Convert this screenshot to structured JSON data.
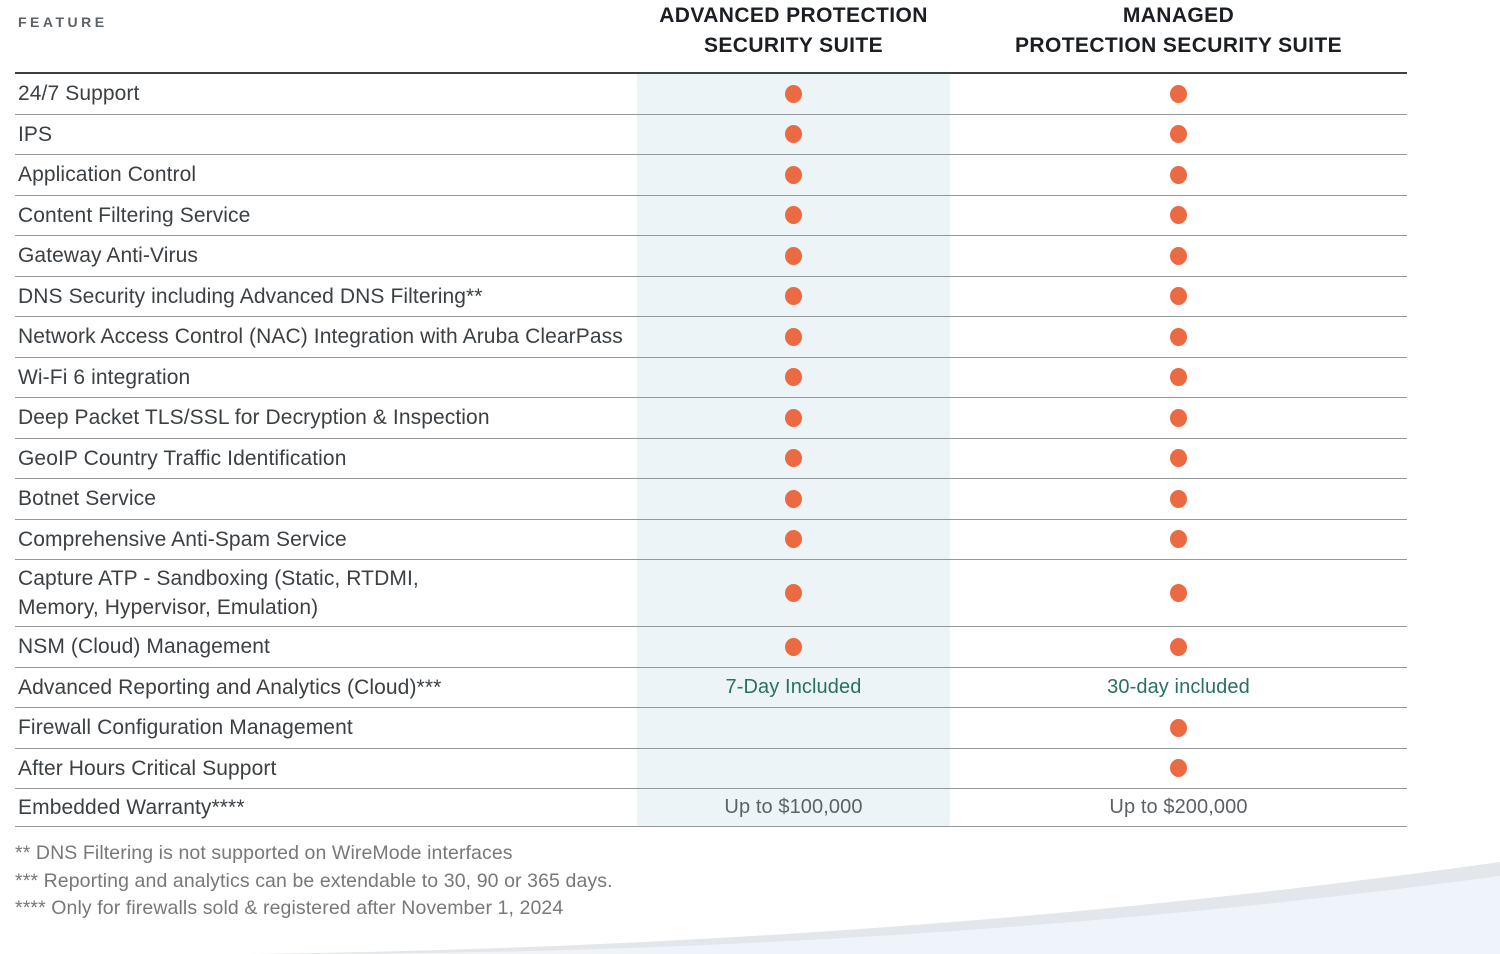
{
  "header": {
    "feature_label": "FEATURE",
    "advanced_label": "ADVANCED PROTECTION\nSECURITY SUITE",
    "managed_label": "MANAGED\nPROTECTION SECURITY SUITE"
  },
  "colors": {
    "dot": "#ec6a41",
    "highlight_bg": "#ecf4f7",
    "value_teal": "#2a6f63"
  },
  "table": {
    "rows": [
      {
        "feature": "24/7 Support",
        "advanced": "dot",
        "managed": "dot"
      },
      {
        "feature": "IPS",
        "advanced": "dot",
        "managed": "dot"
      },
      {
        "feature": "Application Control",
        "advanced": "dot",
        "managed": "dot"
      },
      {
        "feature": "Content Filtering Service",
        "advanced": "dot",
        "managed": "dot"
      },
      {
        "feature": "Gateway Anti-Virus",
        "advanced": "dot",
        "managed": "dot"
      },
      {
        "feature": "DNS Security including Advanced DNS Filtering**",
        "advanced": "dot",
        "managed": "dot"
      },
      {
        "feature": "Network Access Control (NAC) Integration with Aruba ClearPass",
        "advanced": "dot",
        "managed": "dot"
      },
      {
        "feature": "Wi-Fi 6 integration",
        "advanced": "dot",
        "managed": "dot"
      },
      {
        "feature": "Deep Packet TLS/SSL for Decryption & Inspection",
        "advanced": "dot",
        "managed": "dot"
      },
      {
        "feature": "GeoIP Country Traffic Identification",
        "advanced": "dot",
        "managed": "dot"
      },
      {
        "feature": "Botnet Service",
        "advanced": "dot",
        "managed": "dot"
      },
      {
        "feature": "Comprehensive Anti-Spam Service",
        "advanced": "dot",
        "managed": "dot"
      },
      {
        "feature": "Capture ATP -  Sandboxing (Static, RTDMI,\nMemory, Hypervisor, Emulation)",
        "advanced": "dot",
        "managed": "dot",
        "tall": true
      },
      {
        "feature": "NSM (Cloud) Management",
        "advanced": "dot",
        "managed": "dot"
      },
      {
        "feature": "Advanced Reporting and Analytics (Cloud)***",
        "advanced": "7-Day Included",
        "managed": "30-day included",
        "text_style": "teal"
      },
      {
        "feature": "Firewall Configuration Management",
        "advanced": "",
        "managed": "dot"
      },
      {
        "feature": "After Hours Critical Support",
        "advanced": "",
        "managed": "dot"
      },
      {
        "feature": "Embedded Warranty****",
        "advanced": "Up to $100,000",
        "managed": "Up to $200,000",
        "text_style": "gray",
        "short": true
      }
    ]
  },
  "footnotes": [
    "** DNS Filtering is not supported on WireMode interfaces",
    "*** Reporting and analytics can be extendable to 30, 90 or 365 days.",
    "**** Only for firewalls sold & registered after November 1, 2024"
  ]
}
